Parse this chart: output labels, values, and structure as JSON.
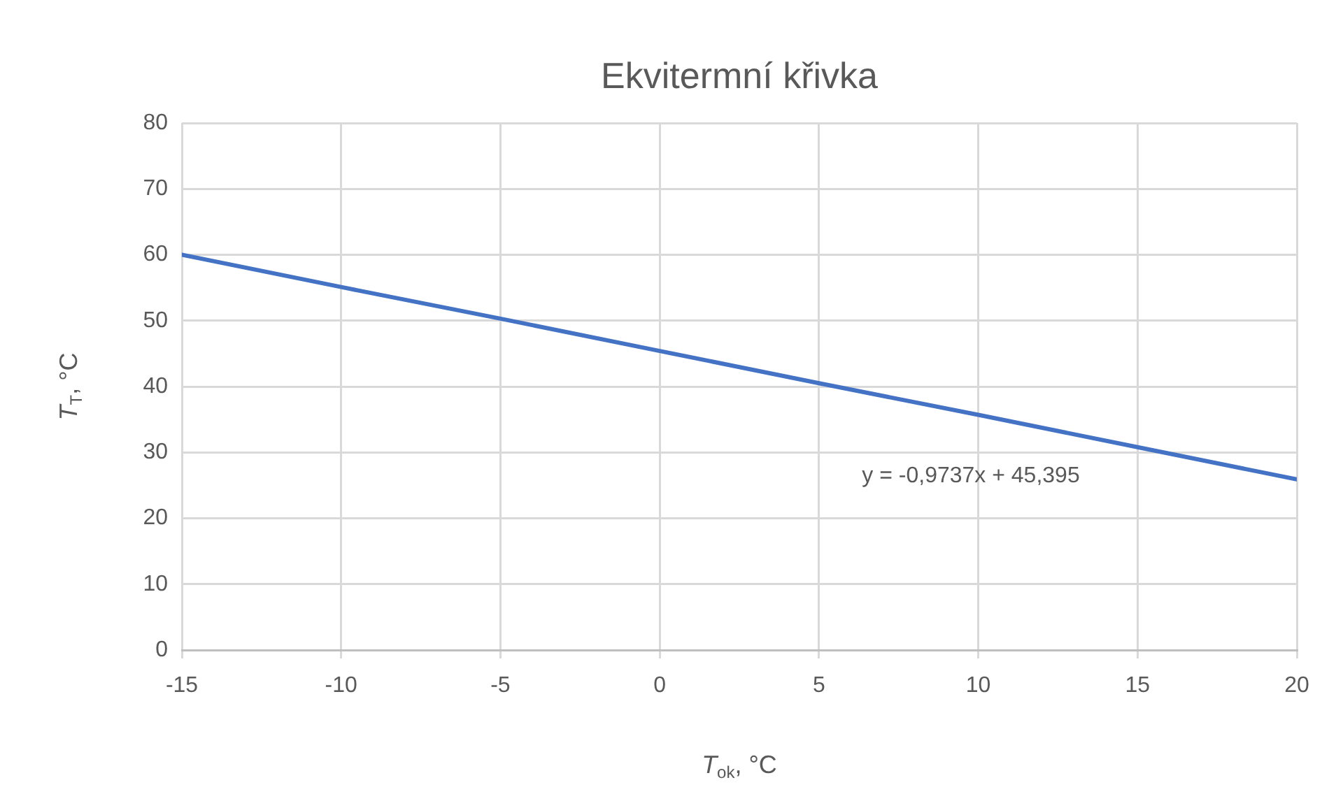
{
  "chart_data": {
    "type": "line",
    "title": "Ekvitermní křivka",
    "xlabel": "T$_{ok}$, °C",
    "ylabel": "T$_{T}$, °C",
    "x": [
      -15,
      -10,
      -5,
      0,
      5,
      10,
      15,
      20
    ],
    "series": [
      {
        "color": "#4472c4",
        "values": [
          60,
          55.1,
          50.3,
          45.4,
          40.5,
          35.7,
          30.8,
          25.9
        ]
      }
    ],
    "xlim": [
      -15,
      20
    ],
    "xticks": [
      -15,
      -10,
      -5,
      0,
      5,
      10,
      15,
      20
    ],
    "ylim": [
      0,
      80
    ],
    "yticks": [
      0,
      10,
      20,
      30,
      40,
      50,
      60,
      70,
      80
    ],
    "grid": true,
    "legend": false,
    "marker": "none",
    "line_style": "solid",
    "annotations": [
      "y = -0,9737x + 45,395"
    ]
  }
}
